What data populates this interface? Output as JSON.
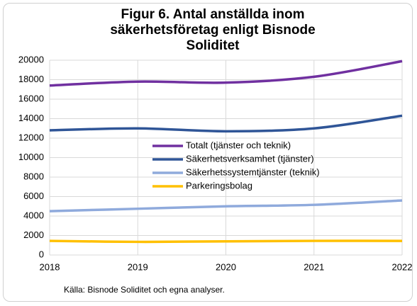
{
  "chart_data": {
    "type": "line",
    "title": "Figur 6. Antal anställda inom säkerhetsföretag enligt Bisnode Soliditet",
    "x": [
      2018,
      2019,
      2020,
      2021,
      2022
    ],
    "xlim": [
      2018,
      2022
    ],
    "xticks": [
      2018,
      2019,
      2020,
      2021,
      2022
    ],
    "ylim": [
      0,
      20000
    ],
    "yticks": [
      0,
      2000,
      4000,
      6000,
      8000,
      10000,
      12000,
      14000,
      16000,
      18000,
      20000
    ],
    "grid": true,
    "series": [
      {
        "name": "Totalt (tjänster och teknik)",
        "color": "#7030a0",
        "values": [
          17400,
          17800,
          17700,
          18300,
          19900
        ]
      },
      {
        "name": "Säkerhetsverksamhet (tjänster)",
        "color": "#2f5597",
        "values": [
          12800,
          13000,
          12700,
          13000,
          14300
        ]
      },
      {
        "name": "Säkerhetssystemtjänster (teknik)",
        "color": "#8faadc",
        "values": [
          4500,
          4750,
          5000,
          5150,
          5600
        ]
      },
      {
        "name": "Parkeringsbolag",
        "color": "#ffc000",
        "values": [
          1450,
          1350,
          1400,
          1450,
          1450
        ]
      }
    ],
    "source": "Källa: Bisnode Soliditet och egna analyser."
  }
}
